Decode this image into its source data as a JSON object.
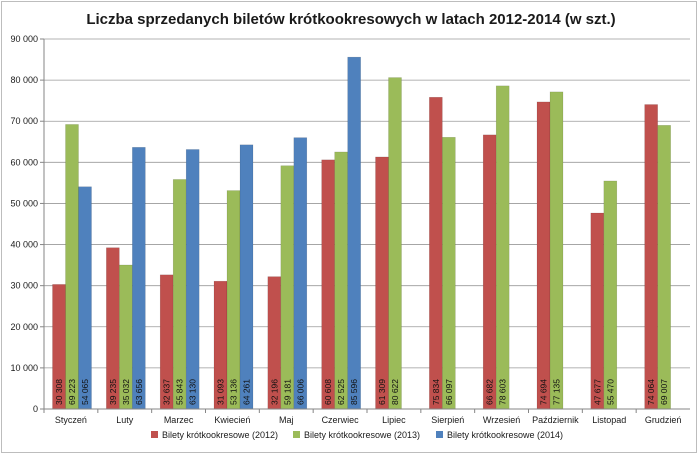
{
  "chart_data": {
    "type": "bar",
    "title": "Liczba sprzedanych biletów krótkookresowych w latach 2012-2014 (w szt.)",
    "xlabel": "",
    "ylabel": "",
    "ylim": [
      0,
      90000
    ],
    "yticks": [
      0,
      10000,
      20000,
      30000,
      40000,
      50000,
      60000,
      70000,
      80000,
      90000
    ],
    "ytick_labels": [
      "0",
      "10 000",
      "20 000",
      "30 000",
      "40 000",
      "50 000",
      "60 000",
      "70 000",
      "80 000",
      "90 000"
    ],
    "grid": true,
    "legend_position": "bottom",
    "categories": [
      "Styczeń",
      "Luty",
      "Marzec",
      "Kwiecień",
      "Maj",
      "Czerwiec",
      "Lipiec",
      "Sierpień",
      "Wrzesień",
      "Październik",
      "Listopad",
      "Grudzień"
    ],
    "series": [
      {
        "name": "Bilety krótkookresowe (2012)",
        "color": "#c0504d",
        "values": [
          30308,
          39235,
          32637,
          31093,
          32196,
          60608,
          61309,
          75834,
          66682,
          74694,
          47677,
          74064
        ],
        "labels": [
          "30 308",
          "39 235",
          "32 637",
          "31 093",
          "32 196",
          "60 608",
          "61 309",
          "75 834",
          "66 682",
          "74 694",
          "47 677",
          "74 064"
        ]
      },
      {
        "name": "Bilety krótkookresowe (2013)",
        "color": "#9bbb59",
        "values": [
          69223,
          35032,
          55843,
          53136,
          59181,
          62525,
          80622,
          66097,
          78603,
          77135,
          55470,
          69007
        ],
        "labels": [
          "69 223",
          "35 032",
          "55 843",
          "53 136",
          "59 181",
          "62 525",
          "80 622",
          "66 097",
          "78 603",
          "77 135",
          "55 470",
          "69 007"
        ]
      },
      {
        "name": "Bilety krótkookresowe (2014)",
        "color": "#4f81bd",
        "values": [
          54065,
          63656,
          63130,
          64261,
          66006,
          85596,
          null,
          null,
          null,
          null,
          null,
          null
        ],
        "labels": [
          "54 065",
          "63 656",
          "63 130",
          "64 261",
          "66 006",
          "85 596",
          "",
          "",
          "",
          "",
          "",
          ""
        ]
      }
    ]
  }
}
